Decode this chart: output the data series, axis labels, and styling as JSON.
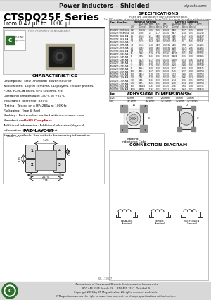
{
  "title_header": "Power Inductors - Shielded",
  "website": "ctparts.com",
  "series_title": "CTSDQ25F Series",
  "series_subtitle": "From 0.47 μH to  1000 μH",
  "bg_color": "#ffffff",
  "specs_title": "SPECIFICATIONS",
  "specs_sub1": "Parts are available in uH/% tolerance only.",
  "specs_sub2": "Test DC current at which the inductance drops 10% typ more for value without current.",
  "characteristics_title": "CHARACTERISTICS",
  "char_lines": [
    "Description:  SMD (shielded) power inductor",
    "Applications:  Digital cameras, CD players, cellular phones,",
    "PDAs, PCMCIA cards, GPS systems, etc.",
    "Operating Temperature: -40°C to +85°C",
    "Inductance Tolerance: ±20%",
    "Testing:  Tested on a HP4284A at 100KHz",
    "Packaging:  Tape & Reel",
    "Marking:  Part number marked with inductance code",
    "Manufacturers: RoHS Compliant",
    "Additional information: Additional electrical/physical",
    "information available upon request",
    "Samples available: See website for ordering information"
  ],
  "rohs_line_idx": 8,
  "pad_layout_title": "PAD LAYOUT",
  "pad_unit": "Unit: mm",
  "phys_dim_title": "PHYSICAL DIMENSIONS",
  "conn_diag_title": "CONNECTION DIAGRAM",
  "footer_lines": [
    "Manufacturer of Passive and Discrete Semiconductor Components",
    "800-444-5925  Inside US     314-429-1551  Outside US",
    "Copyright 2006 by CT Magnetics Inc. All rights reserved worldwide.",
    "CTMagnetics reserves the right to make improvements or change specifications without notice."
  ],
  "doc_num": "04-113-07",
  "phys_table_headers": [
    "Size",
    "A",
    "B",
    "C",
    "D",
    "Pad"
  ],
  "phys_table_row1": [
    "2525",
    "6.5mm",
    "2.5mm",
    "2.60mm",
    "0.6mm",
    "1.4mm"
  ],
  "phys_table_row2": [
    "Tol",
    "±0.1mm",
    "±0.1mm",
    "±0.20mm",
    "±0.1mm",
    "±0.06mm"
  ],
  "spec_header1": [
    "Part Number",
    "L",
    "DCR (Ω)Max",
    "Irms (A)",
    "Isat (A)",
    "SRF (MHz)",
    "DCR (Ω)Max",
    "Irms (A)",
    "Isat (A)",
    "Q-PH"
  ],
  "spec_col_units": [
    "",
    "(uH)",
    "(Ohms)",
    "(Amps)",
    "(Amps)",
    "(MHz)",
    "(Ohms)",
    "(Amps)",
    "(Amps)",
    ""
  ],
  "spec_data": [
    [
      "CTSDQ25F-0R47M-R/A",
      "0.47",
      "0.0635",
      "3.11",
      "0.45",
      "0.0108",
      "50.0",
      "1.67",
      "0.35",
      "0.0138"
    ],
    [
      "CTSDQ25F-0R68M-R/A",
      "0.68",
      "0.088",
      "2.7",
      "1.77",
      "0.0130",
      "56.7",
      "1.44",
      "0.35",
      "0.01018"
    ],
    [
      "CTSDQ25F-1R0M-R/A",
      "1.0",
      "0.118",
      "2.3",
      "4.00",
      "0.01505",
      "42.6",
      "1.23",
      "2.55",
      "0.01919"
    ],
    [
      "CTSDQ25F-1R5M-R/A",
      "1.5",
      "0.167",
      "1.88",
      "4.19",
      "0.01295",
      "36.6",
      "1.05",
      "2.19",
      "0.01655"
    ],
    [
      "CTSDQ25F-2R2M-R/A",
      "2.2",
      "0.222",
      "1.64",
      "4.00",
      "0.01050",
      "31.4",
      "0.9",
      "1.05",
      "0.01341"
    ],
    [
      "CTSDQ25F-3R3M-R/A",
      "3.3",
      "0.318",
      "1.28",
      "4.09",
      "0.00991",
      "25.0",
      "0.68",
      "2.05",
      "0.01266"
    ],
    [
      "CTSDQ25F-4R7M-R/A",
      "4.7",
      "0.463",
      "1.08",
      "4.00",
      "0.00991",
      "20.8",
      "0.576",
      "2.06",
      "0.01266"
    ],
    [
      "CTSDQ25F-6R8M-R/A",
      "6.8",
      "0.59",
      "0.98",
      "5.00",
      "0.00805",
      "17.0",
      "0.523",
      "2.08",
      "0.01028"
    ],
    [
      "CTSDQ25F-100M-R/A",
      "10",
      "21.62",
      "1.29",
      "1.29",
      "0.3126",
      "16.21",
      "0.81",
      "0.86",
      "0.01026"
    ],
    [
      "CTSDQ25F-150M-R/A",
      "15",
      "31.51",
      "1.26",
      "0.66",
      "0.6100",
      "14.21",
      "0.71",
      "0.60",
      "0.01025"
    ],
    [
      "CTSDQ25F-220M-R/A",
      "22",
      "41.78",
      "1.27",
      "0.44",
      "0.5120",
      "12.87",
      "0.73",
      "0.46",
      "0.01640"
    ],
    [
      "CTSDQ25F-330M-R/A",
      "33",
      "62.03",
      "1.28",
      "0.33",
      "0.6120",
      "9.65",
      "0.68",
      "0.33",
      "0.01240"
    ],
    [
      "CTSDQ25F-470M-R/A",
      "47",
      "82.28",
      "1.29",
      "0.35",
      "0.4100",
      "8.60",
      "0.68",
      "0.35",
      "0.01037"
    ],
    [
      "CTSDQ25F-680M-R/A",
      "68",
      "121.8",
      "1.28",
      "0.30",
      "0.4120",
      "6.87",
      "0.68",
      "0.30",
      "0.00876"
    ],
    [
      "CTSDQ25F-101M-R/A",
      "100",
      "182.4",
      "1.27",
      "0.29",
      "0.4120",
      "5.35",
      "0.67",
      "0.28",
      "0.00754"
    ],
    [
      "CTSDQ25F-151M-R/A",
      "150",
      "262.0",
      "1.28",
      "0.25",
      "0.3120",
      "4.23",
      "0.68",
      "0.25",
      "0.00754"
    ],
    [
      "CTSDQ25F-221M-R/A",
      "220",
      "373.1",
      "1.20",
      "0.25",
      "0.2120",
      "3.45",
      "0.66",
      "0.23",
      "0.00754"
    ],
    [
      "CTSDQ25F-331M-R/A",
      "330",
      "484.4",
      "1.26",
      "0.23",
      "0.2120",
      "2.74",
      "0.66",
      "0.21",
      "0.00754"
    ],
    [
      "CTSDQ25F-471M-R/A",
      "470",
      "677.4",
      "1.21",
      "0.21",
      "0.1120",
      "2.20",
      "0.64",
      "0.20",
      "0.00754"
    ],
    [
      "CTSDQ25F-681M-R/A",
      "680",
      "8114.4",
      "1.26",
      "0.18",
      "0.1110",
      "1.66",
      "0.64",
      "0.18",
      "0.00756"
    ],
    [
      "CTSDQ25F-102M-R/A",
      "1000",
      "81406",
      "1.26",
      "0.01",
      "0.1111",
      "1.66",
      "0.64",
      "0.01",
      "0.40818"
    ]
  ],
  "conn_labels": [
    "PARALLEL",
    "SERIES",
    "INDEPENDENT"
  ]
}
